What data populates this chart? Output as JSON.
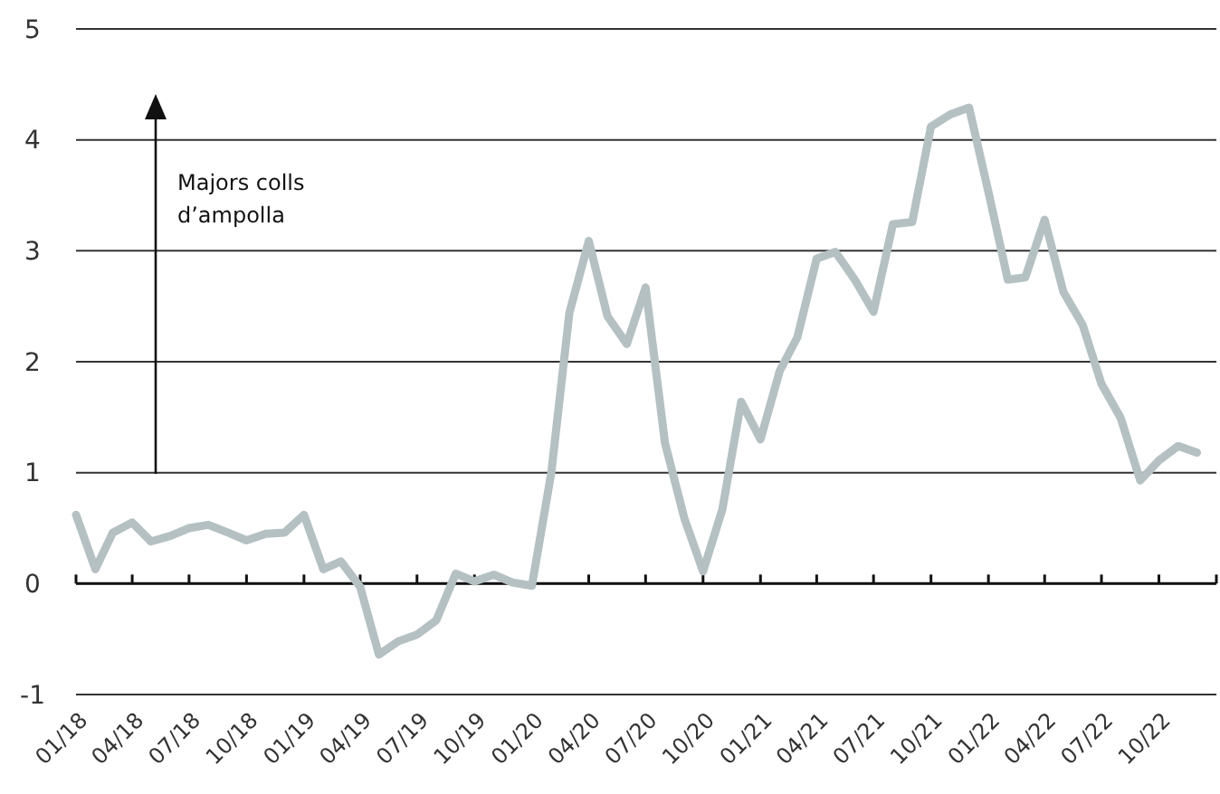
{
  "chart_data": {
    "type": "line",
    "x": [
      "2018-01",
      "2018-02",
      "2018-03",
      "2018-04",
      "2018-05",
      "2018-06",
      "2018-07",
      "2018-08",
      "2018-09",
      "2018-10",
      "2018-11",
      "2018-12",
      "2019-01",
      "2019-02",
      "2019-03",
      "2019-04",
      "2019-05",
      "2019-06",
      "2019-07",
      "2019-08",
      "2019-09",
      "2019-10",
      "2019-11",
      "2019-12",
      "2020-01",
      "2020-02",
      "2020-03",
      "2020-04",
      "2020-05",
      "2020-06",
      "2020-07",
      "2020-08",
      "2020-09",
      "2020-10",
      "2020-11",
      "2020-12",
      "2021-01",
      "2021-02",
      "2021-03",
      "2021-04",
      "2021-05",
      "2021-06",
      "2021-07",
      "2021-08",
      "2021-09",
      "2021-10",
      "2021-11",
      "2021-12",
      "2022-01",
      "2022-02",
      "2022-03",
      "2022-04",
      "2022-05",
      "2022-06",
      "2022-07",
      "2022-08",
      "2022-09",
      "2022-10",
      "2022-11",
      "2022-12"
    ],
    "xlim": [
      "2018-01",
      "2023-01"
    ],
    "xticks": [
      {
        "value": "2018-01",
        "label": "01/18"
      },
      {
        "value": "2018-04",
        "label": "04/18"
      },
      {
        "value": "2018-07",
        "label": "07/18"
      },
      {
        "value": "2018-10",
        "label": "10/18"
      },
      {
        "value": "2019-01",
        "label": "01/19"
      },
      {
        "value": "2019-04",
        "label": "04/19"
      },
      {
        "value": "2019-07",
        "label": "07/19"
      },
      {
        "value": "2019-10",
        "label": "10/19"
      },
      {
        "value": "2020-01",
        "label": "01/20"
      },
      {
        "value": "2020-04",
        "label": "04/20"
      },
      {
        "value": "2020-07",
        "label": "07/20"
      },
      {
        "value": "2020-10",
        "label": "10/20"
      },
      {
        "value": "2021-01",
        "label": "01/21"
      },
      {
        "value": "2021-04",
        "label": "04/21"
      },
      {
        "value": "2021-07",
        "label": "07/21"
      },
      {
        "value": "2021-10",
        "label": "10/21"
      },
      {
        "value": "2022-01",
        "label": "01/22"
      },
      {
        "value": "2022-04",
        "label": "04/22"
      },
      {
        "value": "2022-07",
        "label": "07/22"
      },
      {
        "value": "2022-10",
        "label": "10/22"
      },
      {
        "value": "2023-01",
        "label": null
      }
    ],
    "series": [
      {
        "color": "#b5c0c3",
        "values": [
          0.62,
          0.13,
          0.46,
          0.55,
          0.38,
          0.43,
          0.5,
          0.53,
          0.46,
          0.39,
          0.45,
          0.46,
          0.62,
          0.13,
          0.2,
          -0.03,
          -0.64,
          -0.52,
          -0.46,
          -0.33,
          0.09,
          0.02,
          0.08,
          0.01,
          -0.02,
          1.0,
          2.44,
          3.09,
          2.41,
          2.16,
          2.67,
          1.27,
          0.59,
          0.11,
          0.67,
          1.64,
          1.3,
          1.92,
          2.22,
          2.93,
          2.99,
          2.74,
          2.45,
          3.24,
          3.26,
          4.12,
          4.23,
          4.29,
          3.53,
          2.74,
          2.76,
          3.28,
          2.63,
          2.33,
          1.8,
          1.49,
          0.93,
          1.11,
          1.24,
          1.18
        ]
      }
    ],
    "ylim": [
      -1,
      5
    ],
    "yticks": [
      -1,
      0,
      1,
      2,
      3,
      4,
      5
    ],
    "grid": "y",
    "marker": "none",
    "line_style": "solid",
    "annotations": [
      "Majors colls d’ampolla"
    ]
  }
}
